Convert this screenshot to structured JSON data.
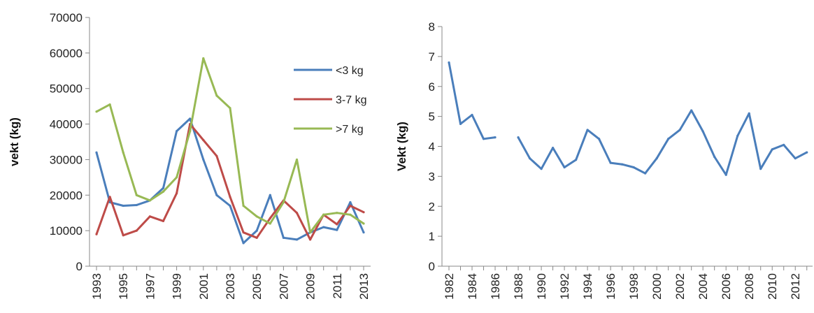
{
  "chart_data": [
    {
      "type": "line",
      "ylabel": "vekt (kg)",
      "ylim": [
        0,
        70000
      ],
      "y_ticks": [
        "0",
        "10000",
        "20000",
        "30000",
        "40000",
        "50000",
        "60000",
        "70000"
      ],
      "x": [
        1993,
        1994,
        1995,
        1996,
        1997,
        1998,
        1999,
        2000,
        2001,
        2002,
        2003,
        2004,
        2005,
        2006,
        2007,
        2008,
        2009,
        2010,
        2011,
        2012,
        2013
      ],
      "x_tick_labels": [
        "1993",
        "1995",
        "1997",
        "1999",
        "2001",
        "2003",
        "2005",
        "2007",
        "2009",
        "2011",
        "2013"
      ],
      "legend_position": "top-right",
      "series": [
        {
          "name": "<3 kg",
          "color": "#4a7ebb",
          "values": [
            32000,
            18000,
            17000,
            17200,
            18500,
            22000,
            38000,
            41500,
            30000,
            20000,
            17000,
            6500,
            10000,
            20000,
            8000,
            7500,
            9500,
            11000,
            10200,
            18000,
            9500
          ]
        },
        {
          "name": "3-7 kg",
          "color": "#be4b48",
          "values": [
            9000,
            19500,
            8700,
            10000,
            14000,
            12700,
            20500,
            40000,
            35500,
            31000,
            19500,
            9500,
            8000,
            13500,
            18500,
            15000,
            7500,
            14500,
            11800,
            17000,
            15200
          ]
        },
        {
          "name": ">7 kg",
          "color": "#98b954",
          "values": [
            43500,
            45500,
            32000,
            20000,
            18500,
            21000,
            25000,
            38000,
            58500,
            48000,
            44500,
            17000,
            14000,
            12000,
            18000,
            30000,
            9500,
            14500,
            15000,
            14500,
            12000
          ]
        }
      ]
    },
    {
      "type": "line",
      "ylabel": "Vekt (kg)",
      "ylim": [
        0,
        8
      ],
      "y_ticks": [
        "0",
        "1",
        "2",
        "3",
        "4",
        "5",
        "6",
        "7",
        "8"
      ],
      "x_tick_labels": [
        "1982",
        "1984",
        "1986",
        "1988",
        "1990",
        "1992",
        "1994",
        "1996",
        "1998",
        "2000",
        "2002",
        "2004",
        "2006",
        "2008",
        "2010",
        "2012"
      ],
      "series": [
        {
          "name": "",
          "color": "#4a7ebb",
          "segments": [
            {
              "x": [
                1982,
                1983,
                1984,
                1985,
                1986
              ],
              "values": [
                6.8,
                4.75,
                5.05,
                4.25,
                4.3
              ]
            },
            {
              "x": [
                1988,
                1989,
                1990,
                1991,
                1992,
                1993,
                1994,
                1995,
                1996,
                1997,
                1998,
                1999,
                2000,
                2001,
                2002,
                2003,
                2004,
                2005,
                2006,
                2007,
                2008,
                2009,
                2010,
                2011,
                2012,
                2013
              ],
              "values": [
                4.3,
                3.6,
                3.25,
                3.95,
                3.3,
                3.55,
                4.55,
                4.25,
                3.45,
                3.4,
                3.3,
                3.1,
                3.6,
                4.25,
                4.55,
                5.2,
                4.5,
                3.65,
                3.05,
                4.35,
                5.1,
                3.25,
                3.9,
                4.05,
                3.6,
                3.8
              ]
            }
          ]
        }
      ]
    }
  ]
}
